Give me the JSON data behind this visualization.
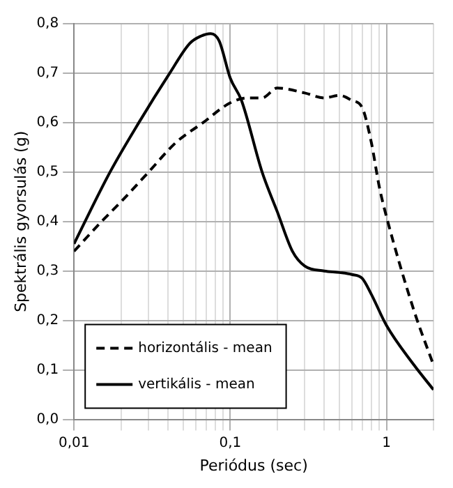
{
  "chart_data": {
    "type": "line",
    "xlabel": "Periódus (sec)",
    "ylabel": "Spektrális gyorsulás (g)",
    "log": "x",
    "grid": true,
    "legend": "bottom left",
    "marker": "none",
    "xlim": [
      0.01,
      2
    ],
    "ylim": [
      0,
      0.8
    ],
    "xticks": [
      {
        "value": 0.01,
        "label": "0,01"
      },
      {
        "value": 0.02,
        "label": null
      },
      {
        "value": 0.03,
        "label": null
      },
      {
        "value": 0.04,
        "label": null
      },
      {
        "value": 0.05,
        "label": null
      },
      {
        "value": 0.06,
        "label": null
      },
      {
        "value": 0.07,
        "label": null
      },
      {
        "value": 0.08,
        "label": null
      },
      {
        "value": 0.09,
        "label": null
      },
      {
        "value": 0.1,
        "label": "0,1"
      },
      {
        "value": 0.2,
        "label": null
      },
      {
        "value": 0.3,
        "label": null
      },
      {
        "value": 0.4,
        "label": null
      },
      {
        "value": 0.5,
        "label": null
      },
      {
        "value": 0.6,
        "label": null
      },
      {
        "value": 0.7,
        "label": null
      },
      {
        "value": 0.8,
        "label": null
      },
      {
        "value": 0.9,
        "label": null
      },
      {
        "value": 1,
        "label": "1"
      },
      {
        "value": 2,
        "label": null
      }
    ],
    "yticks": [
      {
        "value": 0,
        "label": "0,0"
      },
      {
        "value": 0.1,
        "label": "0,1"
      },
      {
        "value": 0.2,
        "label": "0,2"
      },
      {
        "value": 0.3,
        "label": "0,3"
      },
      {
        "value": 0.4,
        "label": "0,4"
      },
      {
        "value": 0.5,
        "label": "0,5"
      },
      {
        "value": 0.6,
        "label": "0,6"
      },
      {
        "value": 0.7,
        "label": "0,7"
      },
      {
        "value": 0.8,
        "label": "0,8"
      }
    ],
    "series": [
      {
        "name": "horizontális - mean",
        "color": "#000000",
        "line_style": "dashed",
        "x": [
          0.01,
          0.015,
          0.02,
          0.03,
          0.045,
          0.067,
          0.1,
          0.13,
          0.16,
          0.2,
          0.3,
          0.4,
          0.5,
          0.6,
          0.7,
          0.8,
          0.9,
          1,
          1.5,
          2
        ],
        "values": [
          0.34,
          0.4,
          0.44,
          0.5,
          0.56,
          0.6,
          0.64,
          0.65,
          0.65,
          0.67,
          0.66,
          0.65,
          0.655,
          0.645,
          0.63,
          0.56,
          0.47,
          0.41,
          0.22,
          0.11
        ]
      },
      {
        "name": "vertikális - mean",
        "color": "#000000",
        "line_style": "solid",
        "x": [
          0.01,
          0.017,
          0.026,
          0.041,
          0.055,
          0.065,
          0.075,
          0.085,
          0.1,
          0.118,
          0.16,
          0.2,
          0.25,
          0.3,
          0.4,
          0.5,
          0.6,
          0.7,
          0.8,
          1,
          1.5,
          2
        ],
        "values": [
          0.355,
          0.5,
          0.6,
          0.7,
          0.76,
          0.775,
          0.78,
          0.765,
          0.69,
          0.645,
          0.5,
          0.42,
          0.34,
          0.31,
          0.3,
          0.297,
          0.293,
          0.285,
          0.253,
          0.19,
          0.11,
          0.06
        ]
      }
    ]
  }
}
